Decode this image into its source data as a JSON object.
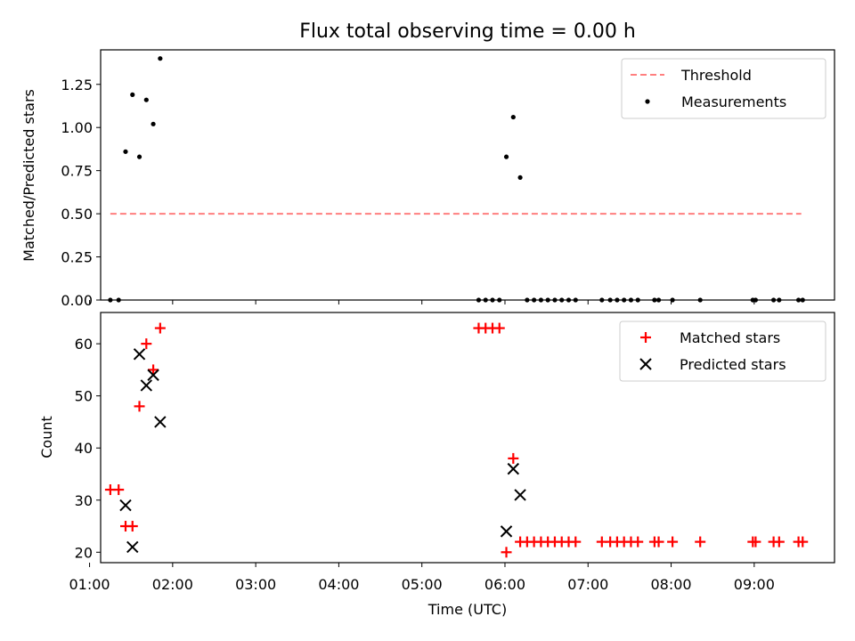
{
  "chart_data": [
    {
      "type": "scatter",
      "title": "Flux total observing time = 0.00 h",
      "xlabel": "",
      "ylabel": "Matched/Predicted stars",
      "xlim": [
        "01:08",
        "09:58"
      ],
      "ylim": [
        0,
        1.45
      ],
      "yticks": [
        "0.00",
        "0.25",
        "0.50",
        "0.75",
        "1.00",
        "1.25"
      ],
      "legend_placement": "top-right",
      "series": [
        {
          "name": "Threshold",
          "kind": "line",
          "style": "dashed",
          "color": "#ff7f7f",
          "x": [
            "01:15",
            "09:34"
          ],
          "y": [
            0.5,
            0.5
          ]
        },
        {
          "name": "Measurements",
          "kind": "scatter",
          "marker": "dot",
          "color": "#000000",
          "x": [
            "01:15",
            "01:21",
            "01:26",
            "01:31",
            "01:36",
            "01:41",
            "01:46",
            "01:51",
            "05:41",
            "05:46",
            "05:51",
            "05:56",
            "06:01",
            "06:06",
            "06:11",
            "06:16",
            "06:21",
            "06:26",
            "06:31",
            "06:36",
            "06:41",
            "06:46",
            "06:51",
            "07:10",
            "07:16",
            "07:21",
            "07:26",
            "07:31",
            "07:36",
            "07:48",
            "07:51",
            "08:01",
            "08:21",
            "08:59",
            "09:01",
            "09:14",
            "09:18",
            "09:32",
            "09:35"
          ],
          "y": [
            0,
            0,
            0.86,
            1.19,
            0.83,
            1.16,
            1.02,
            1.4,
            0,
            0,
            0,
            0,
            0.83,
            1.06,
            0.71,
            0,
            0,
            0,
            0,
            0,
            0,
            0,
            0,
            0,
            0,
            0,
            0,
            0,
            0,
            0,
            0,
            0,
            0,
            0,
            0,
            0,
            0,
            0,
            0
          ]
        }
      ]
    },
    {
      "type": "scatter",
      "title": "",
      "xlabel": "Time (UTC)",
      "ylabel": "Count",
      "xlim": [
        "01:08",
        "09:58"
      ],
      "ylim": [
        18,
        66
      ],
      "yticks": [
        "20",
        "30",
        "40",
        "50",
        "60"
      ],
      "xticks": [
        "01:00",
        "02:00",
        "03:00",
        "04:00",
        "05:00",
        "06:00",
        "07:00",
        "08:00",
        "09:00"
      ],
      "legend_placement": "top-right",
      "series": [
        {
          "name": "Matched stars",
          "kind": "scatter",
          "marker": "plus",
          "color": "#ff0000",
          "x": [
            "01:15",
            "01:21",
            "01:26",
            "01:31",
            "01:36",
            "01:41",
            "01:46",
            "01:51",
            "05:41",
            "05:46",
            "05:51",
            "05:56",
            "06:01",
            "06:06",
            "06:11",
            "06:16",
            "06:21",
            "06:26",
            "06:31",
            "06:36",
            "06:41",
            "06:46",
            "06:51",
            "07:10",
            "07:16",
            "07:21",
            "07:26",
            "07:31",
            "07:36",
            "07:48",
            "07:51",
            "08:01",
            "08:21",
            "08:59",
            "09:01",
            "09:14",
            "09:18",
            "09:32",
            "09:35"
          ],
          "y": [
            32,
            32,
            25,
            25,
            48,
            60,
            55,
            63,
            63,
            63,
            63,
            63,
            20,
            38,
            22,
            22,
            22,
            22,
            22,
            22,
            22,
            22,
            22,
            22,
            22,
            22,
            22,
            22,
            22,
            22,
            22,
            22,
            22,
            22,
            22,
            22,
            22,
            22,
            22
          ]
        },
        {
          "name": "Predicted stars",
          "kind": "scatter",
          "marker": "x",
          "color": "#000000",
          "x": [
            "01:26",
            "01:31",
            "01:36",
            "01:41",
            "01:46",
            "01:51",
            "06:01",
            "06:06",
            "06:11"
          ],
          "y": [
            29,
            21,
            58,
            52,
            54,
            45,
            24,
            36,
            31
          ]
        }
      ]
    }
  ]
}
